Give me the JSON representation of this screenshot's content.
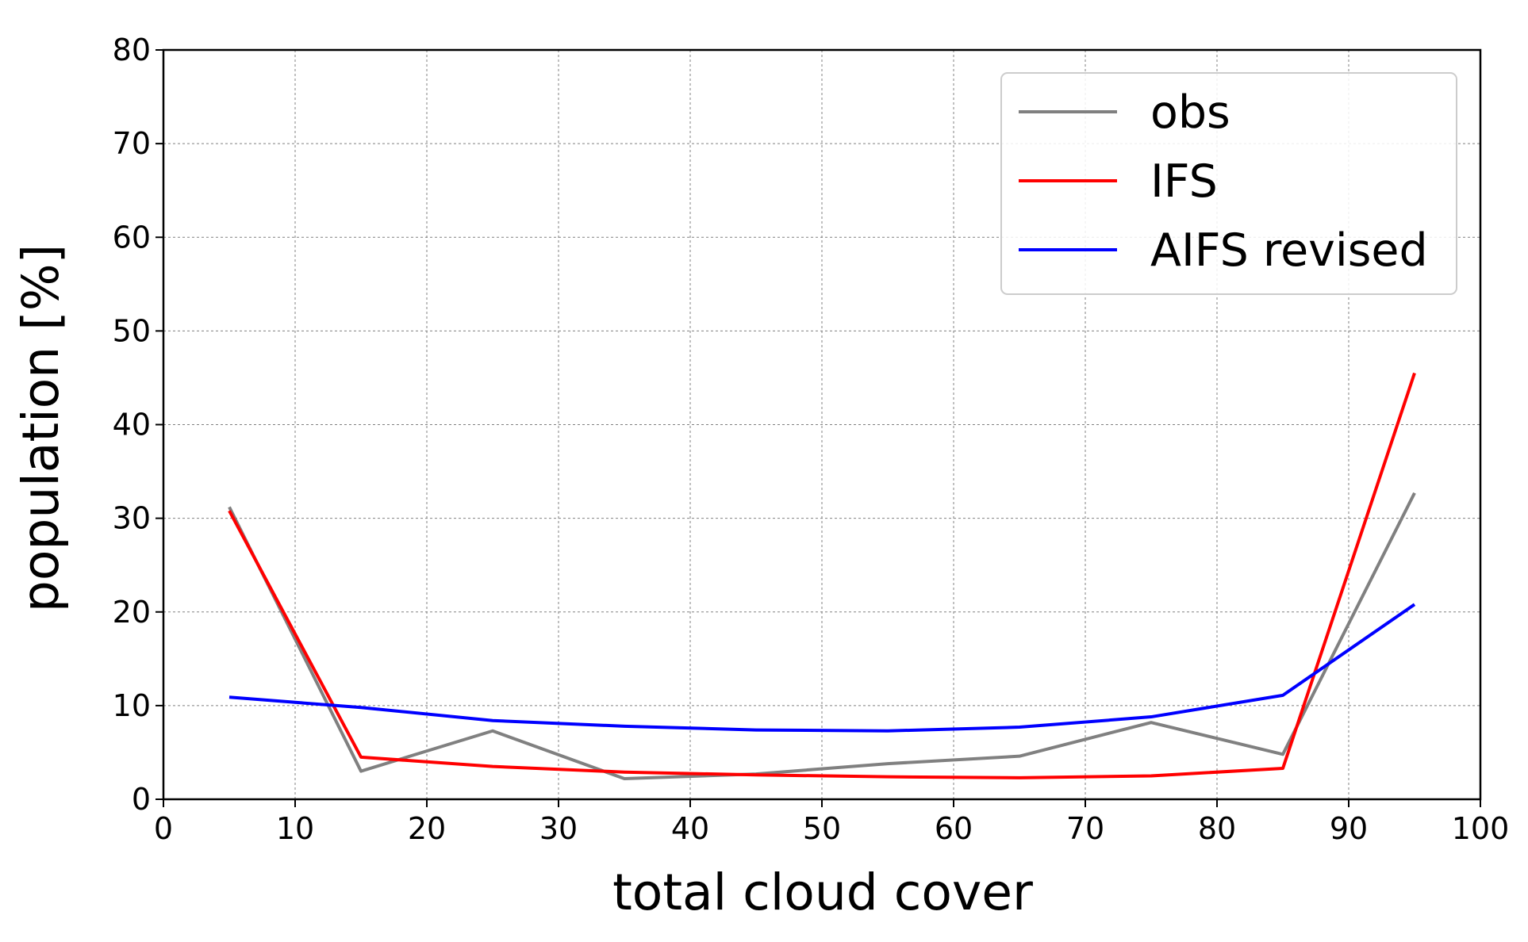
{
  "chart_data": {
    "type": "line",
    "xlabel": "total cloud cover",
    "ylabel": "population [%]",
    "xlim": [
      0,
      100
    ],
    "ylim": [
      0,
      80
    ],
    "xticks": [
      "0",
      "10",
      "20",
      "30",
      "40",
      "50",
      "60",
      "70",
      "80",
      "90",
      "100"
    ],
    "yticks": [
      "0",
      "10",
      "20",
      "30",
      "40",
      "50",
      "60",
      "70",
      "80"
    ],
    "grid": true,
    "legend_position": "top-right",
    "x": [
      5,
      15,
      25,
      35,
      45,
      55,
      65,
      75,
      85,
      95
    ],
    "series": [
      {
        "name": "obs",
        "color": "#808080",
        "values": [
          31.2,
          3.0,
          7.3,
          2.2,
          2.7,
          3.8,
          4.6,
          8.2,
          4.8,
          32.7
        ]
      },
      {
        "name": "IFS",
        "color": "#ff0000",
        "values": [
          30.8,
          4.5,
          3.5,
          2.9,
          2.6,
          2.4,
          2.3,
          2.5,
          3.3,
          45.5
        ]
      },
      {
        "name": "AIFS revised",
        "color": "#0000ff",
        "values": [
          10.9,
          9.8,
          8.4,
          7.8,
          7.4,
          7.3,
          7.7,
          8.8,
          11.1,
          20.8
        ]
      }
    ]
  }
}
